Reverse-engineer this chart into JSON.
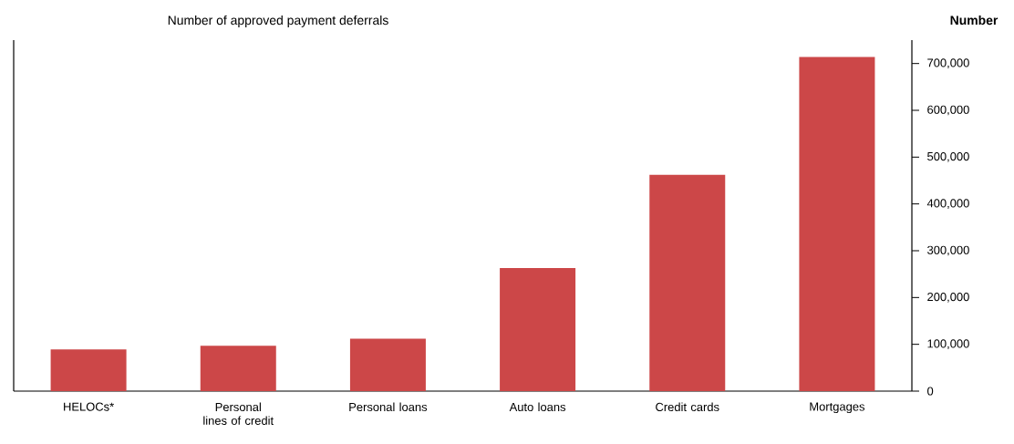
{
  "chart_data": {
    "type": "bar",
    "subtitle": "Number of approved payment deferrals",
    "ylabel": "Number",
    "categories": [
      "HELOCs*",
      "Personal lines of credit",
      "Personal loans",
      "Auto loans",
      "Credit cards",
      "Mortgages"
    ],
    "values": [
      89000,
      97000,
      112000,
      263000,
      462000,
      714000
    ],
    "color": "#cc4748",
    "ylim": [
      0,
      750000
    ],
    "yticks": [
      {
        "value": 0,
        "label": "0"
      },
      {
        "value": 100000,
        "label": "100,000"
      },
      {
        "value": 200000,
        "label": "200,000"
      },
      {
        "value": 300000,
        "label": "300,000"
      },
      {
        "value": 400000,
        "label": "400,000"
      },
      {
        "value": 500000,
        "label": "500,000"
      },
      {
        "value": 600000,
        "label": "600,000"
      },
      {
        "value": 700000,
        "label": "700,000"
      }
    ],
    "grid": false
  }
}
